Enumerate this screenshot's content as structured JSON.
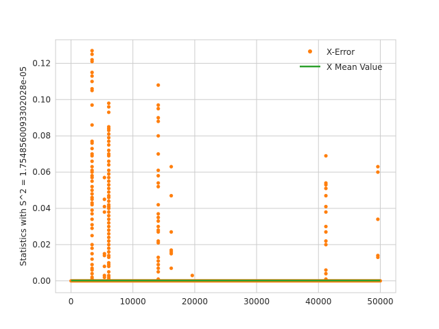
{
  "chart_data": {
    "type": "scatter",
    "title": "",
    "xlabel": "",
    "ylabel": "Statistics with S^2 = 1.754856009330202​8e-05",
    "xlim": [
      -2500,
      52500
    ],
    "ylim": [
      -0.0065,
      0.133
    ],
    "xticks": [
      0,
      10000,
      20000,
      30000,
      40000,
      50000
    ],
    "yticks": [
      0.0,
      0.02,
      0.04,
      0.06,
      0.08,
      0.1,
      0.12
    ],
    "xtick_labels": [
      "0",
      "10000",
      "20000",
      "30000",
      "40000",
      "50000"
    ],
    "ytick_labels": [
      "0.00",
      "0.02",
      "0.04",
      "0.06",
      "0.08",
      "0.10",
      "0.12"
    ],
    "grid": true,
    "legend_position": "top-right",
    "colors": {
      "scatter": "#ff7f0e",
      "line": "#2ca02c",
      "grid": "#cccccc",
      "axes": "#cccccc",
      "text": "#262626"
    },
    "series": [
      {
        "name": "X-Error",
        "kind": "scatter",
        "clusters": [
          {
            "x": 3400,
            "y": [
              0.127,
              0.125,
              0.122,
              0.121,
              0.115,
              0.113,
              0.11,
              0.106,
              0.105,
              0.097,
              0.086,
              0.077,
              0.076,
              0.073,
              0.07,
              0.069,
              0.066,
              0.063,
              0.061,
              0.06,
              0.058,
              0.057,
              0.055,
              0.052,
              0.05,
              0.048,
              0.046,
              0.045,
              0.043,
              0.042,
              0.039,
              0.037,
              0.034,
              0.031,
              0.029,
              0.025,
              0.02,
              0.018,
              0.015,
              0.012,
              0.009,
              0.007,
              0.006,
              0.004,
              0.002,
              0.001
            ]
          },
          {
            "x": 5400,
            "y": [
              0.057,
              0.045,
              0.041,
              0.038,
              0.015,
              0.014,
              0.008,
              0.003,
              0.002
            ]
          },
          {
            "x": 6100,
            "y": [
              0.098,
              0.096,
              0.093,
              0.085,
              0.084,
              0.083,
              0.081,
              0.079,
              0.077,
              0.075,
              0.072,
              0.07,
              0.069,
              0.066,
              0.064,
              0.061,
              0.059,
              0.057,
              0.055,
              0.053,
              0.051,
              0.049,
              0.047,
              0.046,
              0.044,
              0.042,
              0.041,
              0.04,
              0.038,
              0.036,
              0.034,
              0.032,
              0.03,
              0.028,
              0.026,
              0.024,
              0.022,
              0.02,
              0.018,
              0.016,
              0.014,
              0.013,
              0.01,
              0.009,
              0.008,
              0.005,
              0.003,
              0.002,
              0.001
            ]
          },
          {
            "x": 14100,
            "y": [
              0.108,
              0.097,
              0.095,
              0.09,
              0.088,
              0.08,
              0.07,
              0.061,
              0.058,
              0.054,
              0.052,
              0.042,
              0.037,
              0.035,
              0.033,
              0.03,
              0.028,
              0.027,
              0.022,
              0.021,
              0.013,
              0.011,
              0.009,
              0.007,
              0.005,
              0.001
            ]
          },
          {
            "x": 16200,
            "y": [
              0.063,
              0.047,
              0.027,
              0.017,
              0.016,
              0.015,
              0.007
            ]
          },
          {
            "x": 19600,
            "y": [
              0.003
            ]
          },
          {
            "x": 41200,
            "y": [
              0.069,
              0.054,
              0.053,
              0.051,
              0.047,
              0.041,
              0.038,
              0.03,
              0.027,
              0.022,
              0.02,
              0.006,
              0.004,
              0.001
            ]
          },
          {
            "x": 49600,
            "y": [
              0.063,
              0.06,
              0.034,
              0.014,
              0.013
            ]
          }
        ],
        "baseline": {
          "x_start": 0,
          "x_end": 50000,
          "y": 0.0
        }
      },
      {
        "name": "X Mean Value",
        "kind": "line",
        "x": [
          0,
          50000
        ],
        "y": [
          0.0002,
          0.0002
        ]
      }
    ]
  }
}
